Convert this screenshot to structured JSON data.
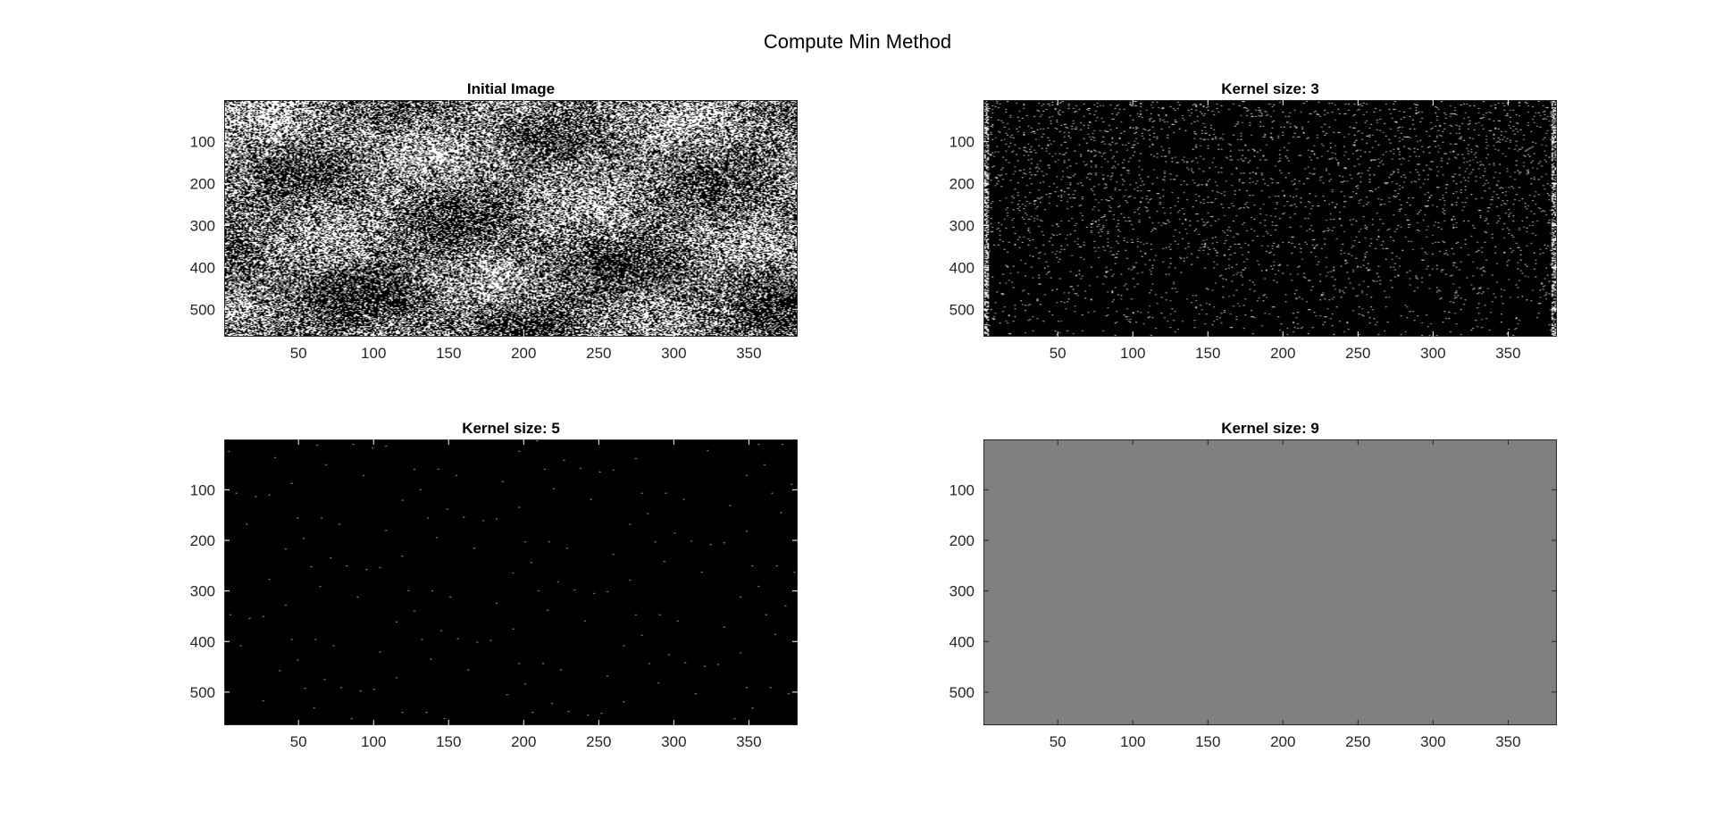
{
  "figure": {
    "title": "Compute Min Method"
  },
  "chart_data": [
    {
      "type": "heatmap",
      "title": "Initial Image",
      "style": "noisy-binary",
      "colormap": "gray",
      "xlim": [
        0.5,
        382.5
      ],
      "ylim": [
        0.5,
        565.5
      ],
      "xticks": [
        50,
        100,
        150,
        200,
        250,
        300,
        350
      ],
      "yticks": [
        100,
        200,
        300,
        400,
        500
      ],
      "white_fraction": 0.5
    },
    {
      "type": "heatmap",
      "title": "Kernel size: 3",
      "style": "sparse-white-on-black",
      "colormap": "gray",
      "xlim": [
        0.5,
        382.5
      ],
      "ylim": [
        0.5,
        565.5
      ],
      "xticks": [
        50,
        100,
        150,
        200,
        250,
        300,
        350
      ],
      "yticks": [
        100,
        200,
        300,
        400,
        500
      ],
      "white_fraction": 0.04
    },
    {
      "type": "heatmap",
      "title": "Kernel size: 5",
      "style": "almost-black",
      "colormap": "gray",
      "xlim": [
        0.5,
        382.5
      ],
      "ylim": [
        0.5,
        565.5
      ],
      "xticks": [
        50,
        100,
        150,
        200,
        250,
        300,
        350
      ],
      "yticks": [
        100,
        200,
        300,
        400,
        500
      ],
      "white_fraction": 0.001
    },
    {
      "type": "heatmap",
      "title": "Kernel size: 9",
      "style": "uniform-gray",
      "colormap": "gray",
      "xlim": [
        0.5,
        382.5
      ],
      "ylim": [
        0.5,
        565.5
      ],
      "xticks": [
        50,
        100,
        150,
        200,
        250,
        300,
        350
      ],
      "yticks": [
        100,
        200,
        300,
        400,
        500
      ],
      "fill_color": "#808080"
    }
  ]
}
